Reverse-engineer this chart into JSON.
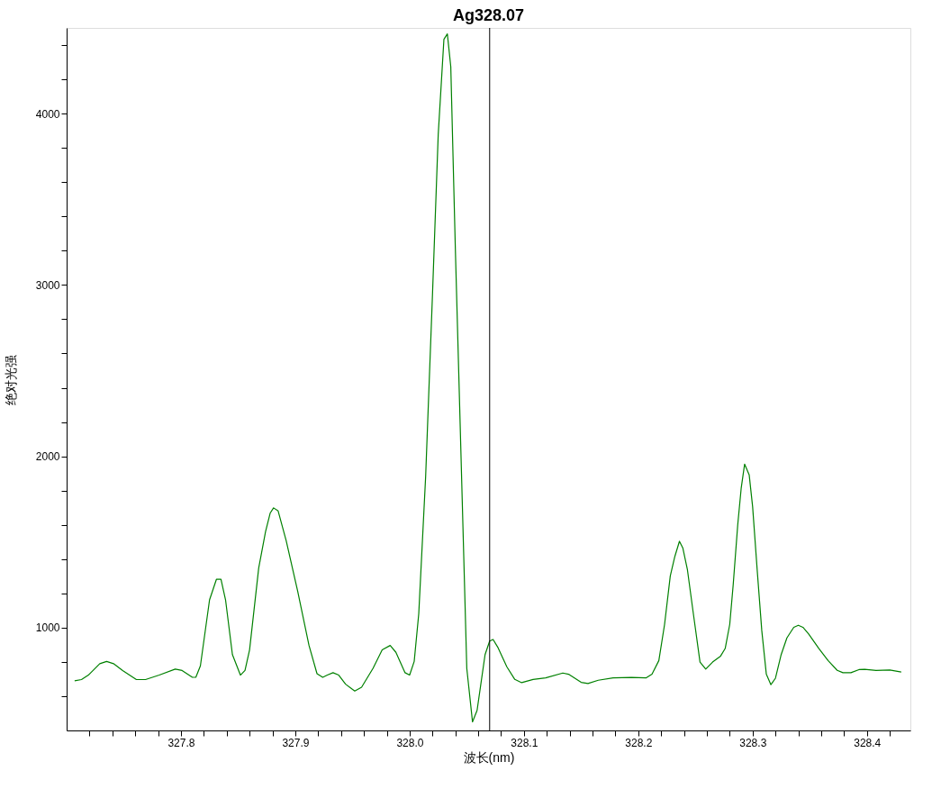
{
  "chart_data": {
    "type": "line",
    "title": "Ag328.07",
    "xlabel": "波长(nm)",
    "ylabel": "绝对光强",
    "xlim": [
      327.7,
      328.438
    ],
    "ylim": [
      400,
      4500
    ],
    "xticks": [
      {
        "value": 327.72,
        "label": null
      },
      {
        "value": 327.74,
        "label": null
      },
      {
        "value": 327.76,
        "label": null
      },
      {
        "value": 327.78,
        "label": null
      },
      {
        "value": 327.8,
        "label": "327.8"
      },
      {
        "value": 327.82,
        "label": null
      },
      {
        "value": 327.84,
        "label": null
      },
      {
        "value": 327.86,
        "label": null
      },
      {
        "value": 327.88,
        "label": null
      },
      {
        "value": 327.9,
        "label": "327.9"
      },
      {
        "value": 327.92,
        "label": null
      },
      {
        "value": 327.94,
        "label": null
      },
      {
        "value": 327.96,
        "label": null
      },
      {
        "value": 327.98,
        "label": null
      },
      {
        "value": 328.0,
        "label": "328.0"
      },
      {
        "value": 328.02,
        "label": null
      },
      {
        "value": 328.04,
        "label": null
      },
      {
        "value": 328.06,
        "label": null
      },
      {
        "value": 328.08,
        "label": null
      },
      {
        "value": 328.1,
        "label": "328.1"
      },
      {
        "value": 328.12,
        "label": null
      },
      {
        "value": 328.14,
        "label": null
      },
      {
        "value": 328.16,
        "label": null
      },
      {
        "value": 328.18,
        "label": null
      },
      {
        "value": 328.2,
        "label": "328.2"
      },
      {
        "value": 328.22,
        "label": null
      },
      {
        "value": 328.24,
        "label": null
      },
      {
        "value": 328.26,
        "label": null
      },
      {
        "value": 328.28,
        "label": null
      },
      {
        "value": 328.3,
        "label": "328.3"
      },
      {
        "value": 328.32,
        "label": null
      },
      {
        "value": 328.34,
        "label": null
      },
      {
        "value": 328.36,
        "label": null
      },
      {
        "value": 328.38,
        "label": null
      },
      {
        "value": 328.4,
        "label": "328.4"
      },
      {
        "value": 328.42,
        "label": null
      }
    ],
    "yticks": [
      {
        "value": 600,
        "label": null
      },
      {
        "value": 800,
        "label": null
      },
      1000,
      {
        "value": 1200,
        "label": null
      },
      {
        "value": 1400,
        "label": null
      },
      {
        "value": 1600,
        "label": null
      },
      {
        "value": 1800,
        "label": null
      },
      2000,
      {
        "value": 2200,
        "label": null
      },
      {
        "value": 2400,
        "label": null
      },
      {
        "value": 2600,
        "label": null
      },
      {
        "value": 2800,
        "label": null
      },
      3000,
      {
        "value": 3200,
        "label": null
      },
      {
        "value": 3400,
        "label": null
      },
      {
        "value": 3600,
        "label": null
      },
      {
        "value": 3800,
        "label": null
      },
      4000,
      {
        "value": 4200,
        "label": null
      },
      {
        "value": 4400,
        "label": null
      }
    ],
    "grid": false,
    "marker": "none",
    "line_style": "solid",
    "ref_lines": [
      {
        "axis": "x",
        "value": 328.07,
        "color": "#000000"
      }
    ],
    "x": [
      327.707,
      327.713,
      327.719,
      327.729,
      327.735,
      327.741,
      327.749,
      327.761,
      327.769,
      327.781,
      327.795,
      327.801,
      327.81,
      327.813,
      327.817,
      327.825,
      327.831,
      327.835,
      327.839,
      327.845,
      327.852,
      327.856,
      327.86,
      327.868,
      327.874,
      327.878,
      327.881,
      327.885,
      327.892,
      327.902,
      327.912,
      327.919,
      327.924,
      327.928,
      327.933,
      327.938,
      327.944,
      327.952,
      327.958,
      327.968,
      327.976,
      327.983,
      327.988,
      327.996,
      328.0,
      328.004,
      328.008,
      328.014,
      328.02,
      328.025,
      328.03,
      328.033,
      328.036,
      328.04,
      328.046,
      328.05,
      328.055,
      328.059,
      328.066,
      328.07,
      328.073,
      328.077,
      328.085,
      328.092,
      328.098,
      328.108,
      328.119,
      328.134,
      328.139,
      328.15,
      328.156,
      328.165,
      328.178,
      328.194,
      328.207,
      328.212,
      328.218,
      328.223,
      328.228,
      328.232,
      328.236,
      328.239,
      328.243,
      328.248,
      328.254,
      328.259,
      328.265,
      328.272,
      328.276,
      328.28,
      328.283,
      328.287,
      328.29,
      328.293,
      328.297,
      328.3,
      328.304,
      328.308,
      328.312,
      328.316,
      328.32,
      328.325,
      328.33,
      328.336,
      328.34,
      328.344,
      328.349,
      328.358,
      328.366,
      328.374,
      328.379,
      328.386,
      328.393,
      328.398,
      328.408,
      328.42,
      328.43
    ],
    "series": [
      {
        "color": "#008000",
        "values": [
          690,
          697,
          723,
          790,
          803,
          790,
          750,
          697,
          697,
          723,
          758,
          750,
          710,
          710,
          777,
          1162,
          1282,
          1282,
          1162,
          843,
          723,
          750,
          870,
          1348,
          1561,
          1668,
          1699,
          1681,
          1508,
          1215,
          896,
          731,
          710,
          723,
          737,
          723,
          670,
          630,
          652,
          763,
          870,
          896,
          856,
          737,
          723,
          803,
          1082,
          1880,
          2944,
          3875,
          4434,
          4465,
          4274,
          3210,
          1747,
          763,
          450,
          517,
          843,
          922,
          931,
          887,
          772,
          698,
          679,
          698,
          707,
          735,
          728,
          681,
          674,
          693,
          707,
          709,
          707,
          728,
          808,
          1019,
          1302,
          1416,
          1504,
          1464,
          1337,
          1090,
          799,
          758,
          799,
          834,
          878,
          1019,
          1249,
          1601,
          1813,
          1954,
          1892,
          1707,
          1337,
          984,
          728,
          667,
          705,
          843,
          940,
          1002,
          1014,
          1002,
          963,
          878,
          808,
          751,
          737,
          737,
          755,
          757,
          750,
          753,
          741
        ]
      }
    ]
  }
}
